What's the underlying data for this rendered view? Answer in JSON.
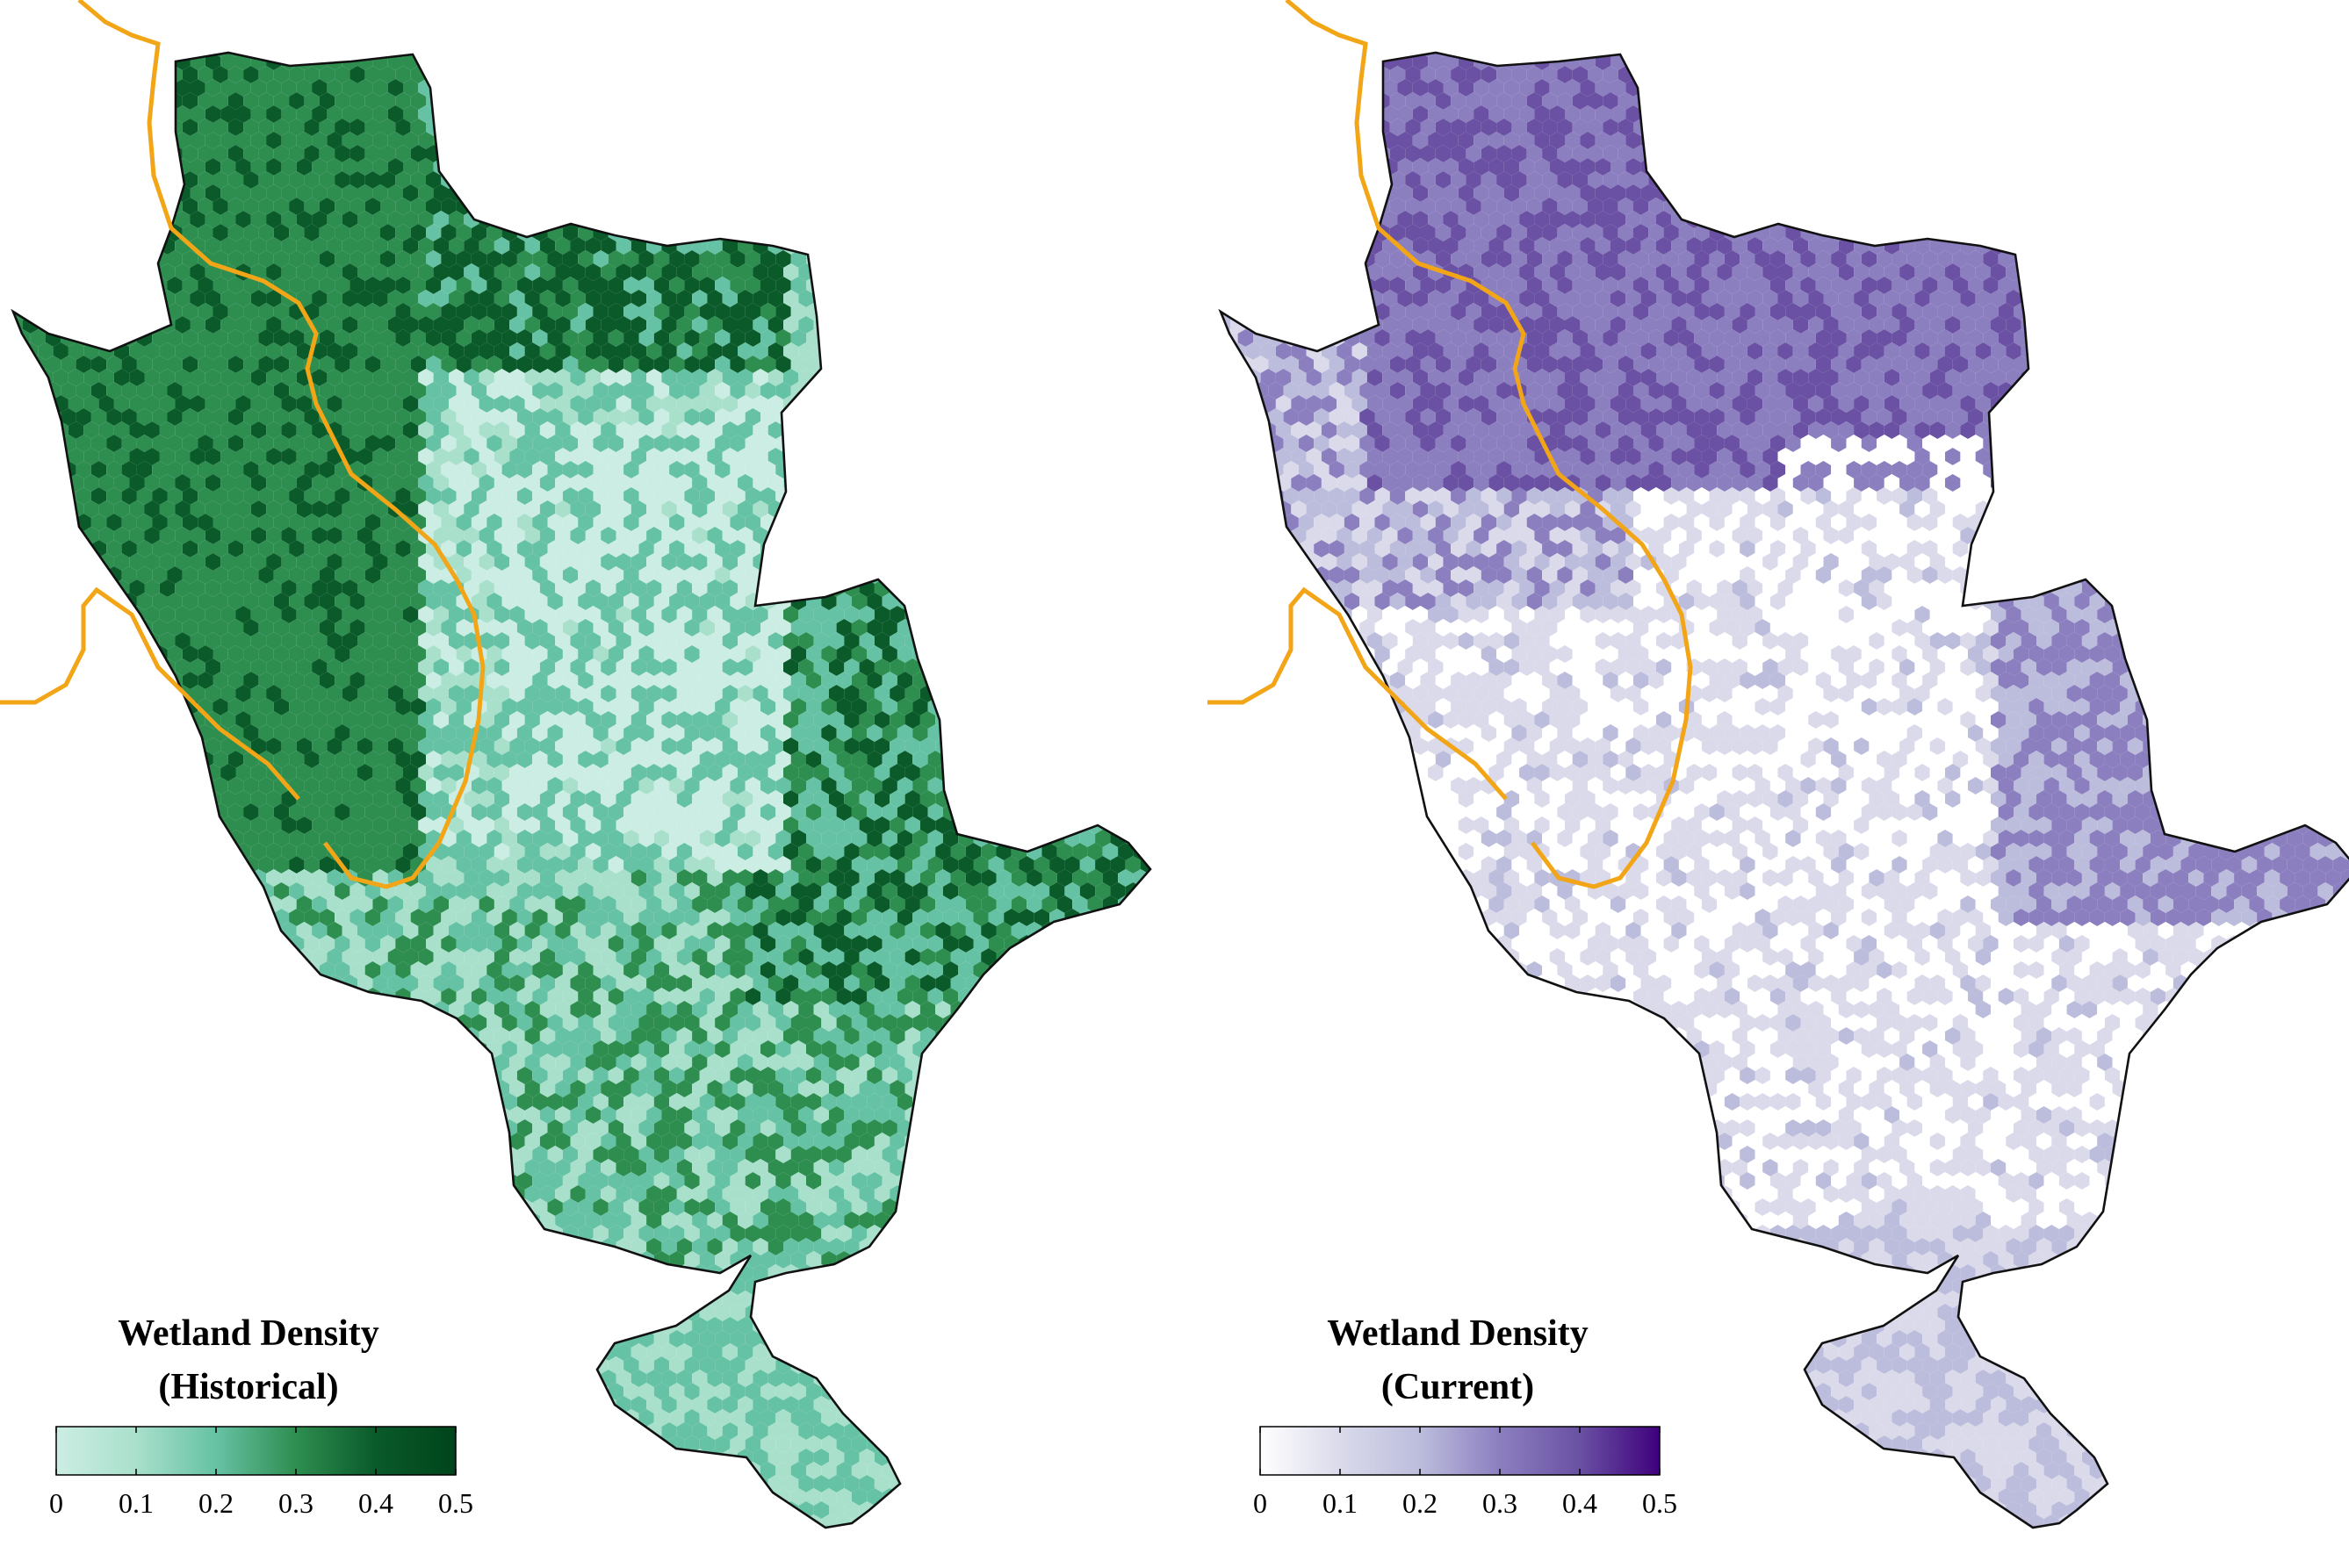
{
  "panels": [
    {
      "id": "historical",
      "legend_title_line1": "Wetland Density",
      "legend_title_line2": "(Historical)",
      "colors": [
        "#ccede3",
        "#a9e0cc",
        "#66c2a4",
        "#2e8e50",
        "#0a5a2a",
        "#00441b"
      ],
      "scale": {
        "min": 0,
        "max": 0.5,
        "ticks": [
          "0",
          "0.1",
          "0.2",
          "0.3",
          "0.4",
          "0.5"
        ]
      },
      "density_level": "high-north-west"
    },
    {
      "id": "current",
      "legend_title_line1": "Wetland Density",
      "legend_title_line2": "(Current)",
      "colors": [
        "#ffffff",
        "#dadaeb",
        "#bcbddc",
        "#8c7fc0",
        "#6a51a3",
        "#3f007d"
      ],
      "scale": {
        "min": 0,
        "max": 0.5,
        "ticks": [
          "0",
          "0.1",
          "0.2",
          "0.3",
          "0.4",
          "0.5"
        ]
      },
      "density_level": "moderate-north"
    }
  ],
  "colors": {
    "boundary": "#111111",
    "river": "#f2a516",
    "background": "#ffffff"
  }
}
